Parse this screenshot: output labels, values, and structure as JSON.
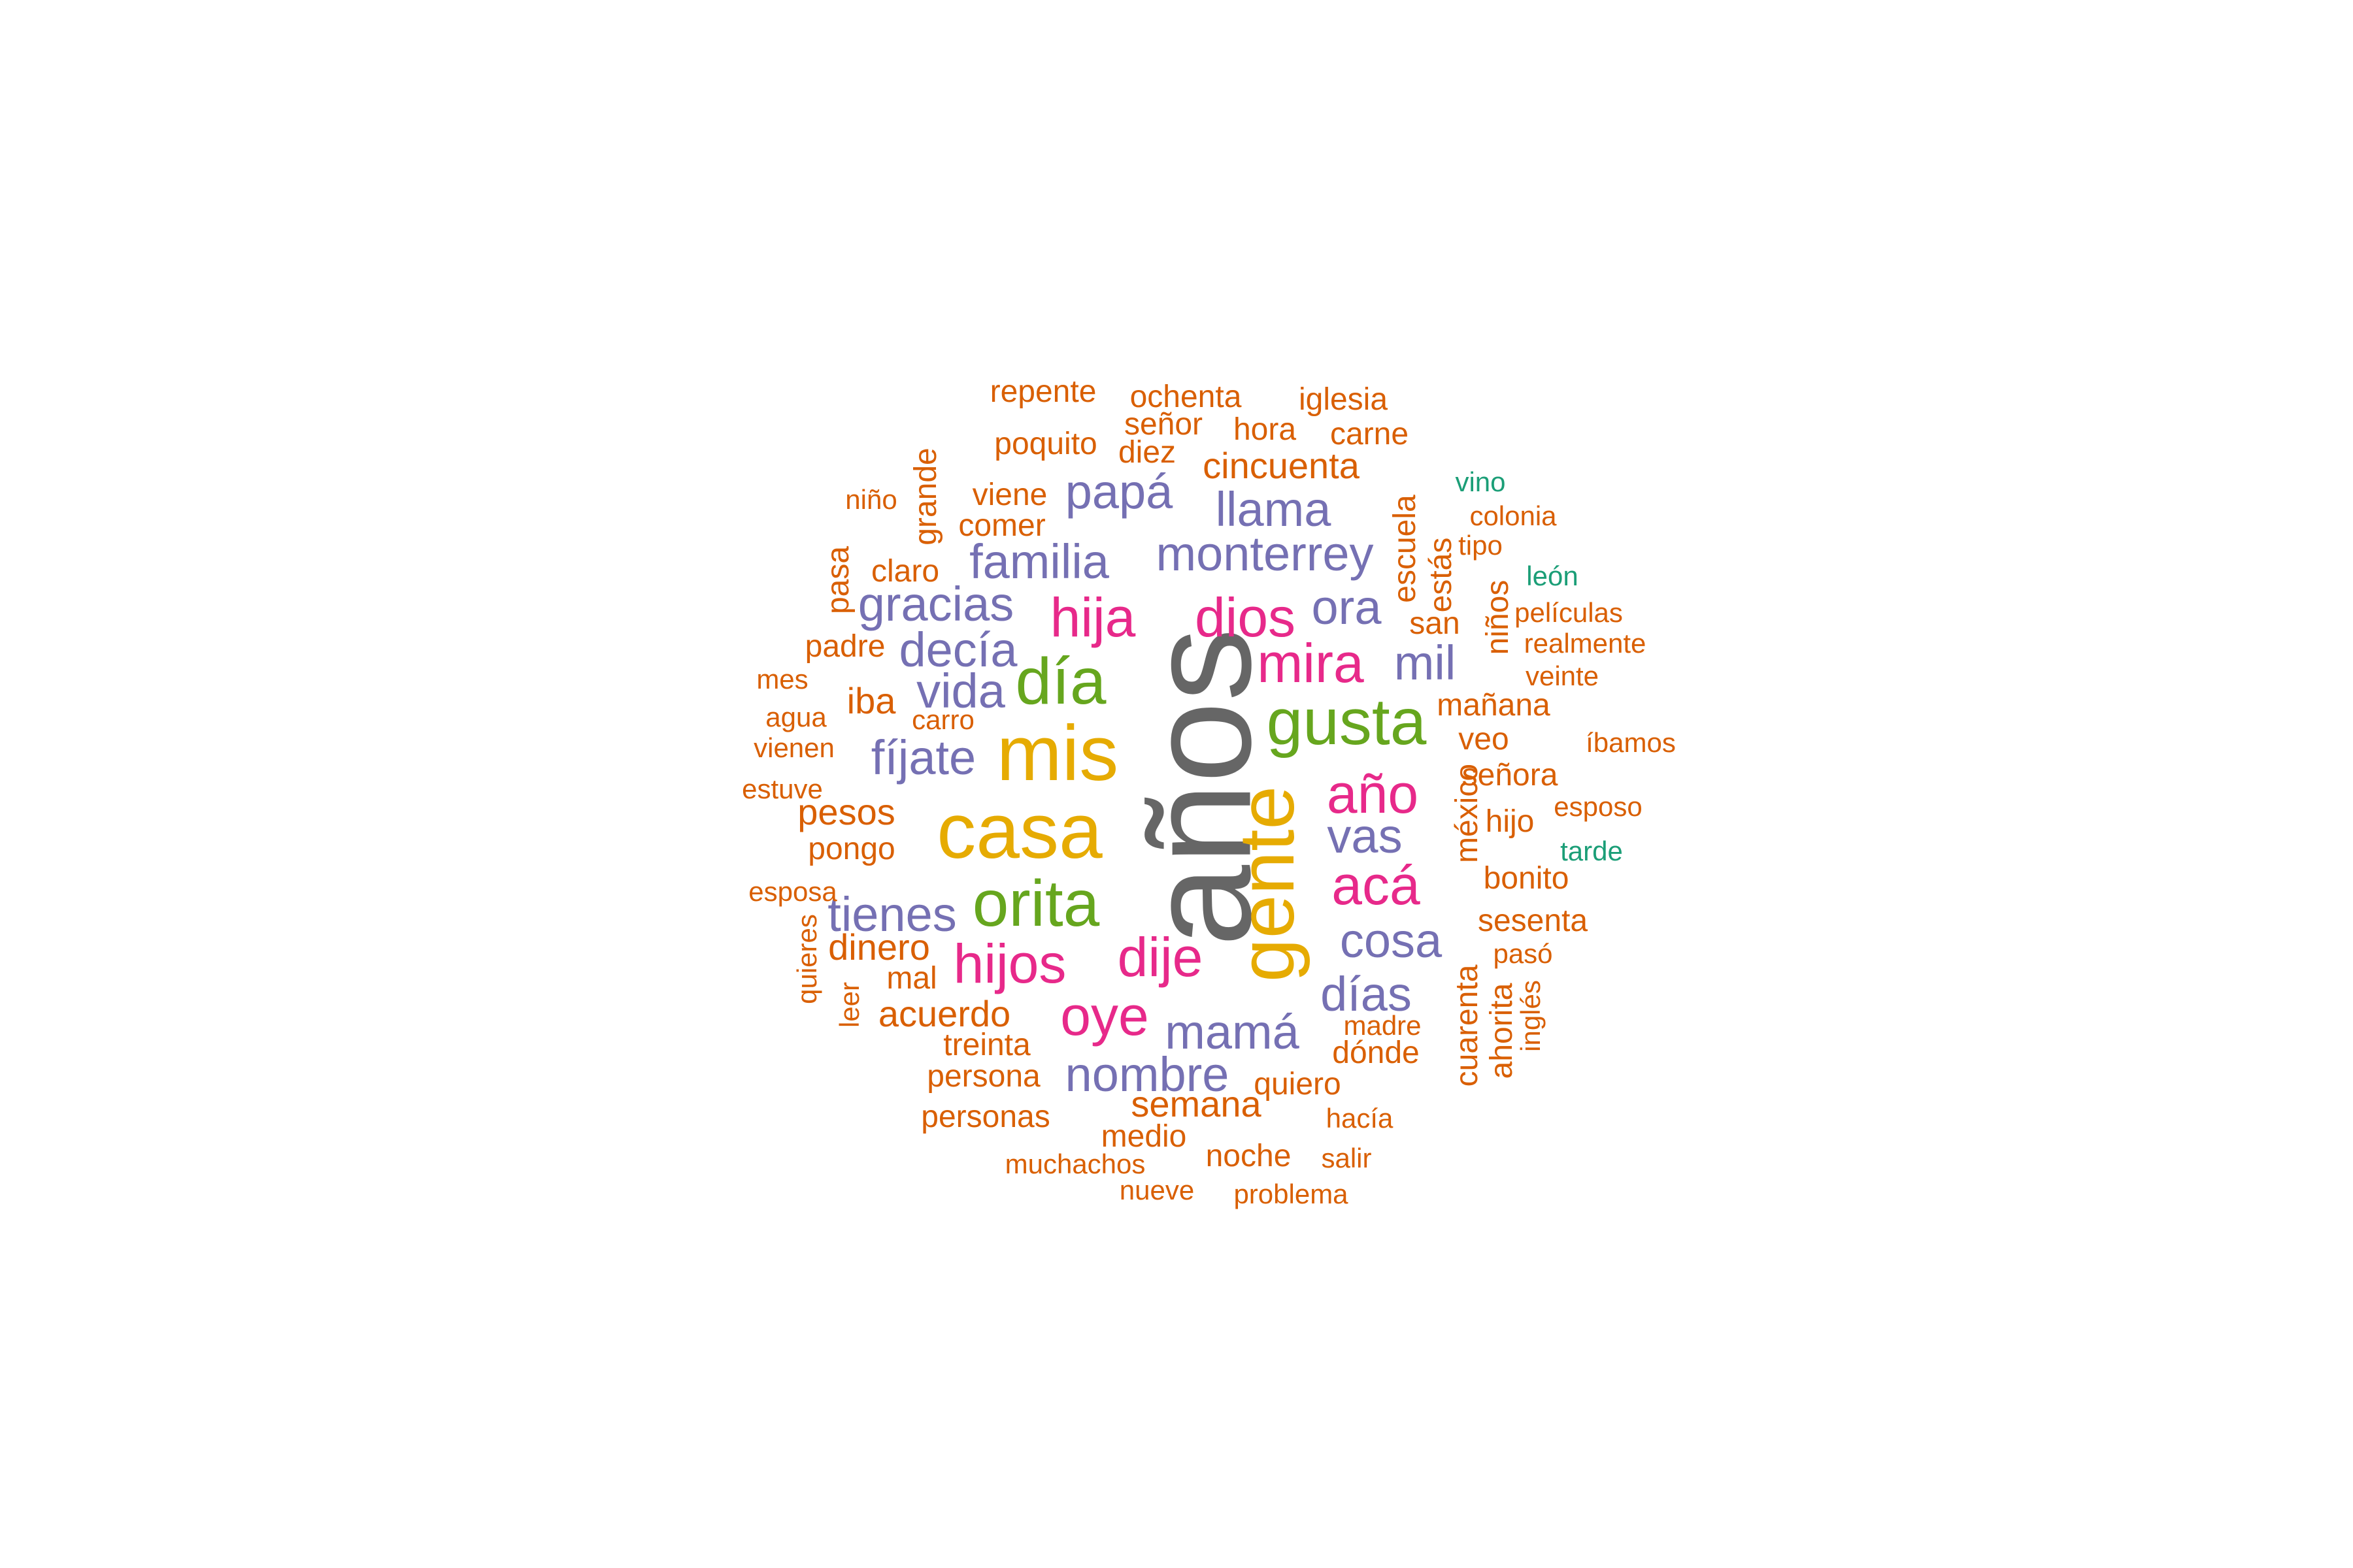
{
  "word_cloud": {
    "colors": {
      "gray": "#666666",
      "gold": "#E6AB02",
      "green": "#66A61E",
      "magenta": "#E7298A",
      "purple": "#7570B3",
      "orange": "#D95F02",
      "teal": "#1B9E77"
    },
    "words": [
      {
        "text": "años",
        "color_key": "gray",
        "rank": 1,
        "vertical": true
      },
      {
        "text": "casa",
        "color_key": "gold",
        "rank": 2,
        "vertical": false
      },
      {
        "text": "mis",
        "color_key": "gold",
        "rank": 2,
        "vertical": false
      },
      {
        "text": "gente",
        "color_key": "gold",
        "rank": 2,
        "vertical": true
      },
      {
        "text": "gusta",
        "color_key": "green",
        "rank": 3,
        "vertical": false
      },
      {
        "text": "orita",
        "color_key": "green",
        "rank": 3,
        "vertical": false
      },
      {
        "text": "día",
        "color_key": "green",
        "rank": 3,
        "vertical": false
      },
      {
        "text": "dios",
        "color_key": "magenta",
        "rank": 4,
        "vertical": false
      },
      {
        "text": "hija",
        "color_key": "magenta",
        "rank": 4,
        "vertical": false
      },
      {
        "text": "mira",
        "color_key": "magenta",
        "rank": 4,
        "vertical": false
      },
      {
        "text": "año",
        "color_key": "magenta",
        "rank": 4,
        "vertical": false
      },
      {
        "text": "acá",
        "color_key": "magenta",
        "rank": 4,
        "vertical": false
      },
      {
        "text": "dije",
        "color_key": "magenta",
        "rank": 4,
        "vertical": false
      },
      {
        "text": "hijos",
        "color_key": "magenta",
        "rank": 4,
        "vertical": false
      },
      {
        "text": "oye",
        "color_key": "magenta",
        "rank": 4,
        "vertical": false
      },
      {
        "text": "papá",
        "color_key": "purple",
        "rank": 5,
        "vertical": false
      },
      {
        "text": "llama",
        "color_key": "purple",
        "rank": 5,
        "vertical": false
      },
      {
        "text": "monterrey",
        "color_key": "purple",
        "rank": 5,
        "vertical": false
      },
      {
        "text": "familia",
        "color_key": "purple",
        "rank": 5,
        "vertical": false
      },
      {
        "text": "ora",
        "color_key": "purple",
        "rank": 5,
        "vertical": false
      },
      {
        "text": "gracias",
        "color_key": "purple",
        "rank": 5,
        "vertical": false
      },
      {
        "text": "decía",
        "color_key": "purple",
        "rank": 5,
        "vertical": false
      },
      {
        "text": "mil",
        "color_key": "purple",
        "rank": 5,
        "vertical": false
      },
      {
        "text": "vida",
        "color_key": "purple",
        "rank": 5,
        "vertical": false
      },
      {
        "text": "fíjate",
        "color_key": "purple",
        "rank": 5,
        "vertical": false
      },
      {
        "text": "vas",
        "color_key": "purple",
        "rank": 5,
        "vertical": false
      },
      {
        "text": "cosa",
        "color_key": "purple",
        "rank": 5,
        "vertical": false
      },
      {
        "text": "tienes",
        "color_key": "purple",
        "rank": 5,
        "vertical": false
      },
      {
        "text": "días",
        "color_key": "purple",
        "rank": 5,
        "vertical": false
      },
      {
        "text": "mamá",
        "color_key": "purple",
        "rank": 5,
        "vertical": false
      },
      {
        "text": "nombre",
        "color_key": "purple",
        "rank": 5,
        "vertical": false
      },
      {
        "text": "repente",
        "color_key": "orange",
        "rank": 7,
        "vertical": false
      },
      {
        "text": "ochenta",
        "color_key": "orange",
        "rank": 7,
        "vertical": false
      },
      {
        "text": "iglesia",
        "color_key": "orange",
        "rank": 7,
        "vertical": false
      },
      {
        "text": "señor",
        "color_key": "orange",
        "rank": 7,
        "vertical": false
      },
      {
        "text": "hora",
        "color_key": "orange",
        "rank": 7,
        "vertical": false
      },
      {
        "text": "carne",
        "color_key": "orange",
        "rank": 7,
        "vertical": false
      },
      {
        "text": "poquito",
        "color_key": "orange",
        "rank": 7,
        "vertical": false
      },
      {
        "text": "diez",
        "color_key": "orange",
        "rank": 7,
        "vertical": false
      },
      {
        "text": "grande",
        "color_key": "orange",
        "rank": 7,
        "vertical": true
      },
      {
        "text": "cincuenta",
        "color_key": "orange",
        "rank": 6,
        "vertical": false
      },
      {
        "text": "escuela",
        "color_key": "orange",
        "rank": 7,
        "vertical": true
      },
      {
        "text": "vino",
        "color_key": "teal",
        "rank": 8,
        "vertical": false
      },
      {
        "text": "niño",
        "color_key": "orange",
        "rank": 8,
        "vertical": false
      },
      {
        "text": "viene",
        "color_key": "orange",
        "rank": 7,
        "vertical": false
      },
      {
        "text": "colonia",
        "color_key": "orange",
        "rank": 8,
        "vertical": false
      },
      {
        "text": "comer",
        "color_key": "orange",
        "rank": 7,
        "vertical": false
      },
      {
        "text": "estás",
        "color_key": "orange",
        "rank": 7,
        "vertical": true
      },
      {
        "text": "tipo",
        "color_key": "orange",
        "rank": 8,
        "vertical": false
      },
      {
        "text": "pasa",
        "color_key": "orange",
        "rank": 7,
        "vertical": true
      },
      {
        "text": "claro",
        "color_key": "orange",
        "rank": 7,
        "vertical": false
      },
      {
        "text": "león",
        "color_key": "teal",
        "rank": 8,
        "vertical": false
      },
      {
        "text": "niños",
        "color_key": "orange",
        "rank": 7,
        "vertical": true
      },
      {
        "text": "películas",
        "color_key": "orange",
        "rank": 8,
        "vertical": false
      },
      {
        "text": "san",
        "color_key": "orange",
        "rank": 7,
        "vertical": false
      },
      {
        "text": "padre",
        "color_key": "orange",
        "rank": 7,
        "vertical": false
      },
      {
        "text": "realmente",
        "color_key": "orange",
        "rank": 8,
        "vertical": false
      },
      {
        "text": "mes",
        "color_key": "orange",
        "rank": 8,
        "vertical": false
      },
      {
        "text": "veinte",
        "color_key": "orange",
        "rank": 8,
        "vertical": false
      },
      {
        "text": "iba",
        "color_key": "orange",
        "rank": 6,
        "vertical": false
      },
      {
        "text": "mañana",
        "color_key": "orange",
        "rank": 7,
        "vertical": false
      },
      {
        "text": "carro",
        "color_key": "orange",
        "rank": 8,
        "vertical": false
      },
      {
        "text": "agua",
        "color_key": "orange",
        "rank": 8,
        "vertical": false
      },
      {
        "text": "vienen",
        "color_key": "orange",
        "rank": 8,
        "vertical": false
      },
      {
        "text": "veo",
        "color_key": "orange",
        "rank": 7,
        "vertical": false
      },
      {
        "text": "íbamos",
        "color_key": "orange",
        "rank": 8,
        "vertical": false
      },
      {
        "text": "señora",
        "color_key": "orange",
        "rank": 7,
        "vertical": false
      },
      {
        "text": "estuve",
        "color_key": "orange",
        "rank": 8,
        "vertical": false
      },
      {
        "text": "méxico",
        "color_key": "orange",
        "rank": 7,
        "vertical": true
      },
      {
        "text": "esposo",
        "color_key": "orange",
        "rank": 8,
        "vertical": false
      },
      {
        "text": "pesos",
        "color_key": "orange",
        "rank": 6,
        "vertical": false
      },
      {
        "text": "hijo",
        "color_key": "orange",
        "rank": 7,
        "vertical": false
      },
      {
        "text": "pongo",
        "color_key": "orange",
        "rank": 7,
        "vertical": false
      },
      {
        "text": "tarde",
        "color_key": "teal",
        "rank": 8,
        "vertical": false
      },
      {
        "text": "bonito",
        "color_key": "orange",
        "rank": 7,
        "vertical": false
      },
      {
        "text": "esposa",
        "color_key": "orange",
        "rank": 8,
        "vertical": false
      },
      {
        "text": "sesenta",
        "color_key": "orange",
        "rank": 7,
        "vertical": false
      },
      {
        "text": "quieres",
        "color_key": "orange",
        "rank": 8,
        "vertical": true
      },
      {
        "text": "dinero",
        "color_key": "orange",
        "rank": 6,
        "vertical": false
      },
      {
        "text": "pasó",
        "color_key": "orange",
        "rank": 8,
        "vertical": false
      },
      {
        "text": "mal",
        "color_key": "orange",
        "rank": 7,
        "vertical": false
      },
      {
        "text": "cuarenta",
        "color_key": "orange",
        "rank": 7,
        "vertical": true
      },
      {
        "text": "leer",
        "color_key": "orange",
        "rank": 8,
        "vertical": true
      },
      {
        "text": "acuerdo",
        "color_key": "orange",
        "rank": 6,
        "vertical": false
      },
      {
        "text": "inglés",
        "color_key": "orange",
        "rank": 8,
        "vertical": true
      },
      {
        "text": "ahorita",
        "color_key": "orange",
        "rank": 7,
        "vertical": true
      },
      {
        "text": "madre",
        "color_key": "orange",
        "rank": 8,
        "vertical": false
      },
      {
        "text": "treinta",
        "color_key": "orange",
        "rank": 7,
        "vertical": false
      },
      {
        "text": "dónde",
        "color_key": "orange",
        "rank": 7,
        "vertical": false
      },
      {
        "text": "persona",
        "color_key": "orange",
        "rank": 7,
        "vertical": false
      },
      {
        "text": "quiero",
        "color_key": "orange",
        "rank": 7,
        "vertical": false
      },
      {
        "text": "semana",
        "color_key": "orange",
        "rank": 6,
        "vertical": false
      },
      {
        "text": "personas",
        "color_key": "orange",
        "rank": 7,
        "vertical": false
      },
      {
        "text": "hacía",
        "color_key": "orange",
        "rank": 8,
        "vertical": false
      },
      {
        "text": "medio",
        "color_key": "orange",
        "rank": 7,
        "vertical": false
      },
      {
        "text": "noche",
        "color_key": "orange",
        "rank": 7,
        "vertical": false
      },
      {
        "text": "muchachos",
        "color_key": "orange",
        "rank": 8,
        "vertical": false
      },
      {
        "text": "salir",
        "color_key": "orange",
        "rank": 8,
        "vertical": false
      },
      {
        "text": "nueve",
        "color_key": "orange",
        "rank": 8,
        "vertical": false
      },
      {
        "text": "problema",
        "color_key": "orange",
        "rank": 8,
        "vertical": false
      }
    ]
  }
}
